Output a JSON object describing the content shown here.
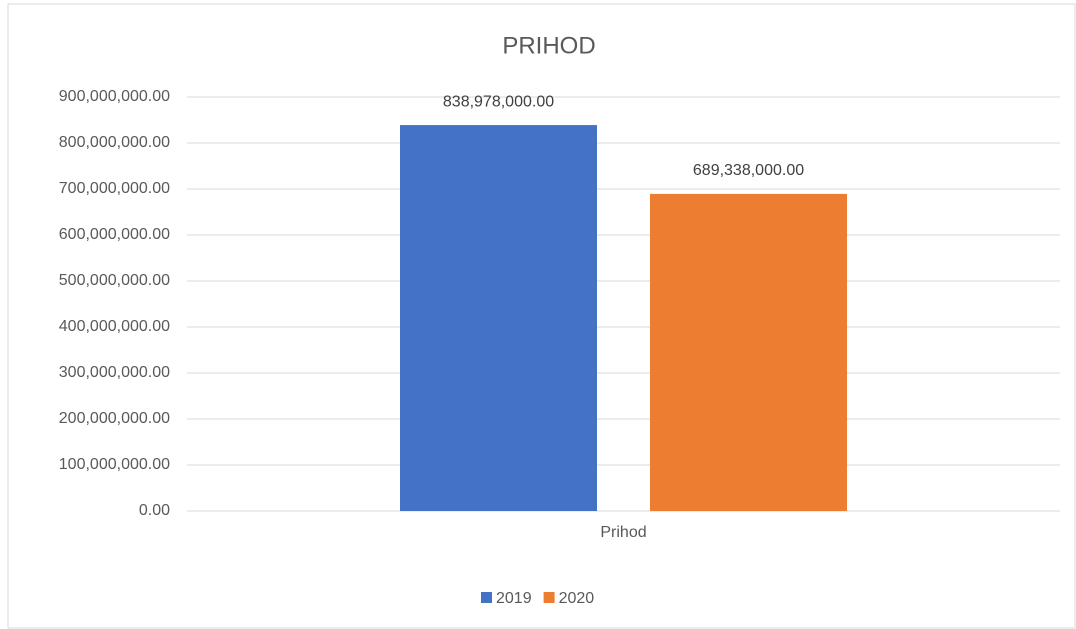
{
  "chart_data": {
    "type": "bar",
    "title": "PRIHOD",
    "categories": [
      "Prihod"
    ],
    "series": [
      {
        "name": "2019",
        "color": "#4472c4",
        "values": [
          838978000
        ],
        "value_labels": [
          "838,978,000.00"
        ]
      },
      {
        "name": "2020",
        "color": "#ed7d31",
        "values": [
          689338000
        ],
        "value_labels": [
          "689,338,000.00"
        ]
      }
    ],
    "ylim": [
      0,
      900000000
    ],
    "yticks": [
      {
        "value": 0,
        "label": "0.00"
      },
      {
        "value": 100000000,
        "label": "100,000,000.00"
      },
      {
        "value": 200000000,
        "label": "200,000,000.00"
      },
      {
        "value": 300000000,
        "label": "300,000,000.00"
      },
      {
        "value": 400000000,
        "label": "400,000,000.00"
      },
      {
        "value": 500000000,
        "label": "500,000,000.00"
      },
      {
        "value": 600000000,
        "label": "600,000,000.00"
      },
      {
        "value": 700000000,
        "label": "700,000,000.00"
      },
      {
        "value": 800000000,
        "label": "800,000,000.00"
      },
      {
        "value": 900000000,
        "label": "900,000,000.00"
      }
    ],
    "grid": true,
    "legend": "bottom"
  }
}
